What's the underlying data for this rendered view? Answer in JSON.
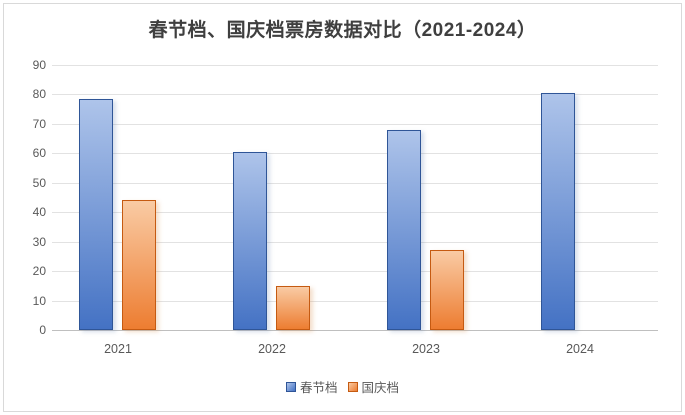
{
  "title": "春节档、国庆档票房数据对比（2021-2024）",
  "colors": {
    "blue_top": "#AEC4EA",
    "blue_bottom": "#4472C4",
    "blue_border": "#2F5597",
    "orange_top": "#F9CBA4",
    "orange_bottom": "#ED7D31",
    "orange_border": "#C55A11",
    "gridline": "#E2E2E2",
    "axis": "#BFBFBF",
    "tick_text": "#595959",
    "title_text": "#3F3F3F",
    "chart_border": "#D9D9D9"
  },
  "chart_data": {
    "type": "bar",
    "title": "春节档、国庆档票房数据对比（2021-2024）",
    "categories": [
      "2021",
      "2022",
      "2023",
      "2024"
    ],
    "series": [
      {
        "key": "spring-festival",
        "name": "春节档",
        "color": "blue",
        "values": [
          78.5,
          60.4,
          67.9,
          80.5
        ]
      },
      {
        "key": "national-day",
        "name": "国庆档",
        "color": "orange",
        "values": [
          44,
          15,
          27.3,
          null
        ]
      }
    ],
    "xlabel": "",
    "ylabel": "",
    "ylim": [
      0,
      90
    ],
    "yticks": [
      0,
      10,
      20,
      30,
      40,
      50,
      60,
      70,
      80,
      90
    ],
    "grid": true,
    "legend_position": "bottom"
  }
}
